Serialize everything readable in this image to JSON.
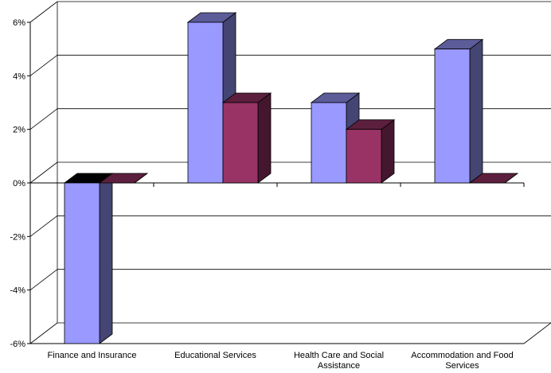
{
  "chart_data": {
    "type": "bar",
    "style": "3d-clustered-column",
    "categories": [
      "Finance and Insurance",
      "Educational Services",
      "Health Care and Social Assistance",
      "Accommodation and Food Services"
    ],
    "series": [
      {
        "color": "#9999ff",
        "values": [
          -6,
          6,
          3,
          5
        ]
      },
      {
        "color": "#993366",
        "values": [
          0,
          3,
          2,
          0
        ]
      }
    ],
    "yticks": [
      "-6%",
      "-4%",
      "-2%",
      "0%",
      "2%",
      "4%",
      "6%"
    ],
    "ylim": [
      -6,
      6
    ],
    "grid": true,
    "legend": "none",
    "title": "",
    "xlabel": "",
    "ylabel": ""
  }
}
